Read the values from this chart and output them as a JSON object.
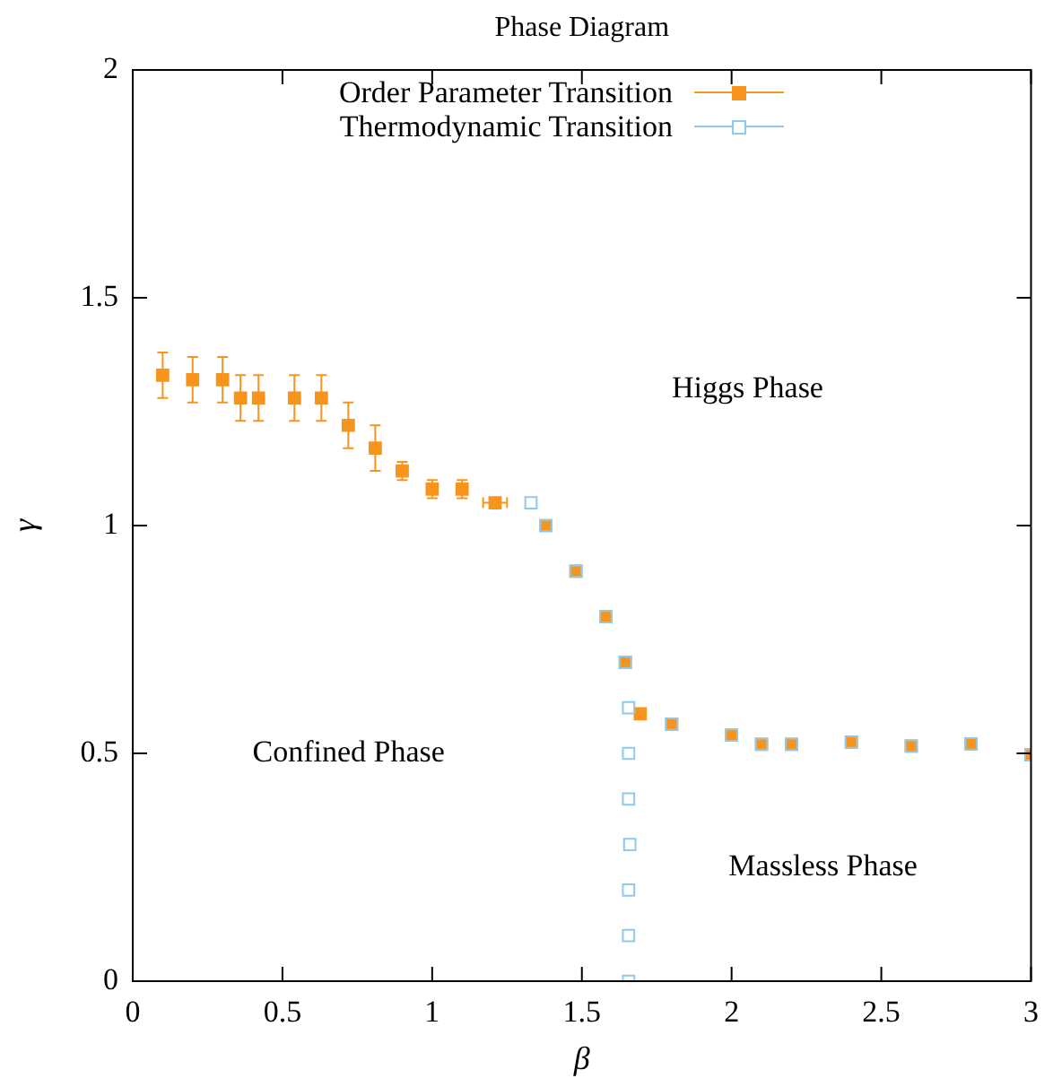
{
  "chart_data": {
    "type": "scatter",
    "title": "Phase Diagram",
    "xlabel": "β",
    "ylabel": "γ",
    "xlim": [
      0,
      3
    ],
    "xticks": [
      0,
      0.5,
      1,
      1.5,
      2,
      2.5,
      3
    ],
    "ylim": [
      0,
      2
    ],
    "yticks": [
      0,
      0.5,
      1,
      1.5,
      2
    ],
    "grid": false,
    "legend": "top",
    "annotations": [
      "Higgs Phase",
      "Confined Phase",
      "Massless Phase"
    ],
    "series": [
      {
        "name": "Thermodynamic Transition",
        "color": "#8ec9ee",
        "marker": "square",
        "x": [
          1.33,
          1.38,
          1.48,
          1.58,
          1.645,
          1.656,
          1.656,
          1.656,
          1.66,
          1.656,
          1.656,
          1.656,
          1.8,
          2.0,
          2.1,
          2.2,
          2.4,
          2.6,
          2.8,
          3.0
        ],
        "values": [
          1.05,
          1.0,
          0.9,
          0.8,
          0.7,
          0.6,
          0.5,
          0.4,
          0.3,
          0.2,
          0.1,
          0.0,
          0.564,
          0.54,
          0.52,
          0.52,
          0.525,
          0.516,
          0.521,
          0.497
        ]
      },
      {
        "name": "Order Parameter Transition",
        "color": "#f7941d",
        "marker": "square",
        "x": [
          0.1,
          0.2,
          0.3,
          0.36,
          0.42,
          0.54,
          0.63,
          0.72,
          0.81,
          0.9,
          1.0,
          1.1,
          1.21,
          1.38,
          1.48,
          1.58,
          1.645,
          1.695,
          1.8,
          2.0,
          2.1,
          2.2,
          2.4,
          2.6,
          2.8,
          3.0
        ],
        "values": [
          1.33,
          1.32,
          1.32,
          1.28,
          1.28,
          1.28,
          1.28,
          1.22,
          1.17,
          1.12,
          1.08,
          1.08,
          1.05,
          1.0,
          0.9,
          0.8,
          0.7,
          0.587,
          0.564,
          0.54,
          0.52,
          0.52,
          0.525,
          0.516,
          0.521,
          0.497
        ],
        "errors": [
          0.05,
          0.05,
          0.05,
          0.05,
          0.05,
          0.05,
          0.05,
          0.05,
          0.05,
          0.02,
          0.02,
          0.02,
          null,
          null,
          null,
          null,
          null,
          null,
          null,
          null,
          null,
          null,
          null,
          null,
          null,
          null
        ],
        "xerrors": [
          null,
          null,
          null,
          null,
          null,
          null,
          null,
          null,
          null,
          null,
          null,
          null,
          0.04,
          null,
          null,
          null,
          null,
          null,
          null,
          null,
          null,
          null,
          null,
          null,
          null,
          null
        ]
      }
    ]
  }
}
